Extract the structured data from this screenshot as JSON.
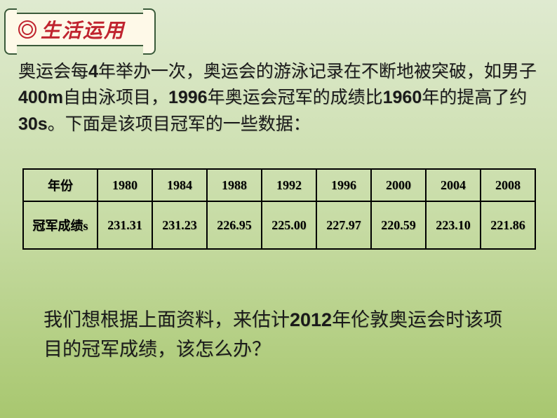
{
  "title": "生活运用",
  "paragraph_parts": {
    "p1a": "奥运会每",
    "p1b": "4",
    "p1c": "年举办一次，奥运会的游泳记录在不断地被突破，如男子",
    "p1d": "400m",
    "p1e": "自由泳项目，",
    "p1f": "1996",
    "p1g": "年奥运会冠军的成绩比",
    "p1h": "1960",
    "p1i": "年的提高了约",
    "p1j": "30s",
    "p1k": "。下面是该项目冠军的一些数据："
  },
  "table": {
    "row1_label": "年份",
    "row2_label": "冠军成绩s",
    "years": [
      "1980",
      "1984",
      "1988",
      "1992",
      "1996",
      "2000",
      "2004",
      "2008"
    ],
    "results": [
      "231.31",
      "231.23",
      "226.95",
      "225.00",
      "227.97",
      "220.59",
      "223.10",
      "221.86"
    ],
    "border_color": "#000000",
    "text_color": "#000000",
    "header_fontsize": 18,
    "cell_fontsize": 18,
    "col_label_width": 106,
    "col_data_width": 78,
    "header_row_height": 46,
    "value_row_height": 68
  },
  "question_parts": {
    "q1": "我们想根据上面资料，来估计",
    "q2": "2012",
    "q3": "年伦敦奥运会时该项目的冠军成绩，该怎么办？"
  },
  "colors": {
    "bg_top": "#dfead0",
    "bg_mid": "#c9dda8",
    "bg_bottom": "#a8c76f",
    "title_red": "#c0242f",
    "title_box_bg": "#fef9e8",
    "title_box_border": "#3a5a3a",
    "text_color": "#1a1a1a"
  },
  "typography": {
    "body_fontsize": 25,
    "question_fontsize": 27,
    "title_fontsize": 28
  }
}
